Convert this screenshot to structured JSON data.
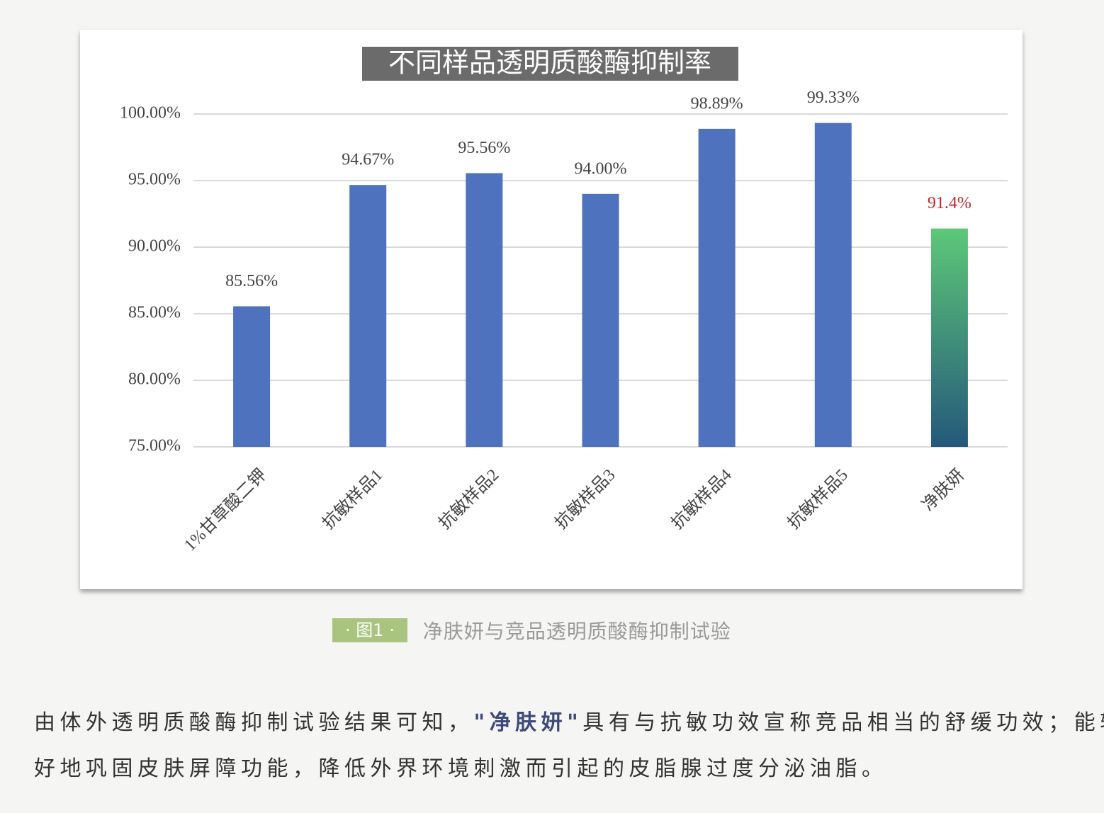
{
  "chart_data": {
    "type": "bar",
    "title": "不同样品透明质酸酶抑制率",
    "categories": [
      "1%甘草酸二钾",
      "抗敏样品1",
      "抗敏样品2",
      "抗敏样品3",
      "抗敏样品4",
      "抗敏样品5",
      "净肤妍"
    ],
    "values": [
      85.56,
      94.67,
      95.56,
      94.0,
      98.89,
      99.33,
      91.4
    ],
    "value_labels": [
      "85.56%",
      "94.67%",
      "95.56%",
      "94.00%",
      "98.89%",
      "99.33%",
      "91.4%"
    ],
    "colors": [
      "#4f72be",
      "#4f72be",
      "#4f72be",
      "#4f72be",
      "#4f72be",
      "#4f72be",
      "#5dc878"
    ],
    "value_label_colors": [
      "#444444",
      "#444444",
      "#444444",
      "#444444",
      "#444444",
      "#444444",
      "#c0262c"
    ],
    "ylim": [
      75,
      100
    ],
    "yticks": [
      {
        "value": 75,
        "label": "75.00%"
      },
      {
        "value": 80,
        "label": "80.00%"
      },
      {
        "value": 85,
        "label": "85.00%"
      },
      {
        "value": 90,
        "label": "90.00%"
      },
      {
        "value": 95,
        "label": "95.00%"
      },
      {
        "value": 100,
        "label": "100.00%"
      }
    ],
    "grid": true
  },
  "caption": {
    "tag": "· 图1 ·",
    "text": "净肤妍与竞品透明质酸酶抑制试验"
  },
  "paragraph": {
    "lines": [
      [
        "由体外透明质酸酶抑制试验结果可知，",
        "\"净肤妍\"",
        "具有与抗敏功效宣称竞品相当的舒缓功效；能较"
      ],
      [
        "好地巩固皮肤屏障功能，降低外界环境刺激而引起的皮脂腺过度分泌油脂。"
      ]
    ]
  }
}
